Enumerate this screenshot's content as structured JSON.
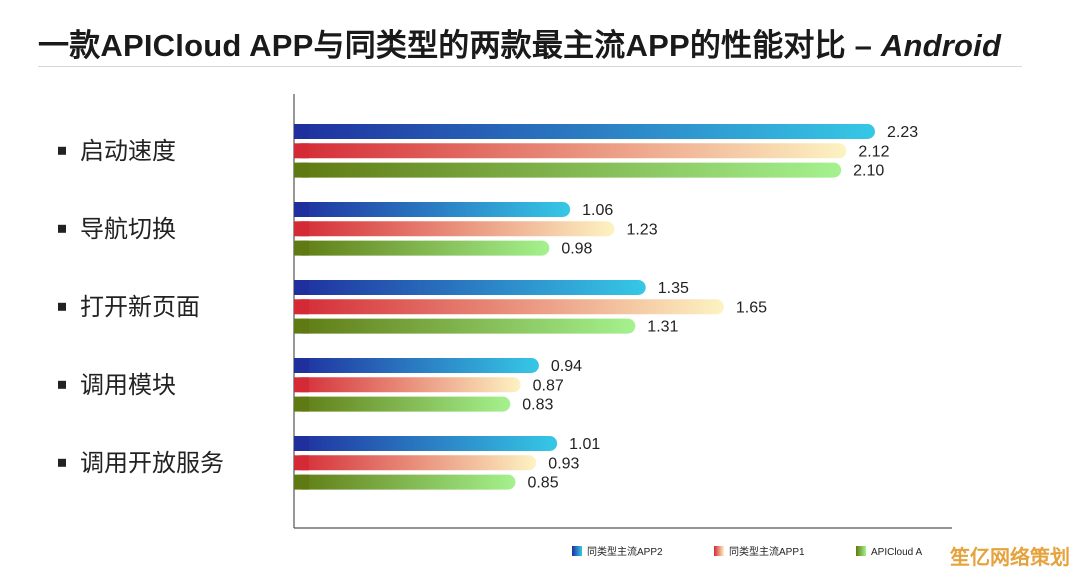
{
  "title": "一款APICloud APP与同类型的两款最主流APP的性能对比 – ",
  "title_suffix": "Android",
  "watermark": "笙亿网络策划",
  "chart_data": {
    "type": "bar",
    "orientation": "horizontal",
    "categories": [
      "启动速度",
      "导航切换",
      "打开新页面",
      "调用模块",
      "调用开放服务"
    ],
    "series": [
      {
        "name": "同类型主流APP2",
        "values": [
          2.23,
          1.06,
          1.35,
          0.94,
          1.01
        ],
        "colors": [
          "#1f2f9e",
          "#36c8e6"
        ]
      },
      {
        "name": "同类型主流APP1",
        "values": [
          2.12,
          1.23,
          1.65,
          0.87,
          0.93
        ],
        "colors": [
          "#d42a35",
          "#fdf3c2"
        ]
      },
      {
        "name": "APICloud A",
        "values": [
          2.1,
          0.98,
          1.31,
          0.83,
          0.85
        ],
        "colors": [
          "#5f7a12",
          "#a4f28e"
        ]
      }
    ],
    "value_labels": [
      [
        "2.23",
        "1.06",
        "1.35",
        "0.94",
        "1.01"
      ],
      [
        "2.12",
        "1.23",
        "1.65",
        "0.87",
        "0.93"
      ],
      [
        "2.10",
        "0.98",
        "1.31",
        "0.83",
        "0.85"
      ]
    ],
    "legend_position": "bottom-right",
    "grid": false,
    "xlim": [
      0,
      2.23
    ]
  }
}
